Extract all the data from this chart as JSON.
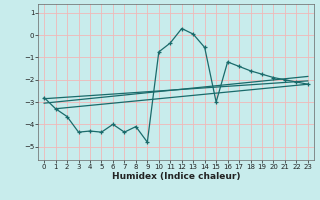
{
  "title": "",
  "xlabel": "Humidex (Indice chaleur)",
  "bg_color": "#c8ecec",
  "grid_color": "#f0b8b8",
  "line_color": "#1a6b6b",
  "xlim": [
    -0.5,
    23.5
  ],
  "ylim": [
    -5.6,
    1.4
  ],
  "yticks": [
    1,
    0,
    -1,
    -2,
    -3,
    -4,
    -5
  ],
  "xticks": [
    0,
    1,
    2,
    3,
    4,
    5,
    6,
    7,
    8,
    9,
    10,
    11,
    12,
    13,
    14,
    15,
    16,
    17,
    18,
    19,
    20,
    21,
    22,
    23
  ],
  "main_curve_x": [
    0,
    1,
    2,
    3,
    4,
    5,
    6,
    7,
    8,
    9,
    10,
    11,
    12,
    13,
    14,
    15,
    16,
    17,
    18,
    19,
    20,
    21,
    22,
    23
  ],
  "main_curve_y": [
    -2.8,
    -3.3,
    -3.65,
    -4.35,
    -4.3,
    -4.35,
    -4.0,
    -4.35,
    -4.1,
    -4.8,
    -0.75,
    -0.35,
    0.3,
    0.05,
    -0.55,
    -3.0,
    -1.2,
    -1.4,
    -1.6,
    -1.75,
    -1.9,
    -2.0,
    -2.1,
    -2.2
  ],
  "line1_x": [
    0,
    23
  ],
  "line1_y": [
    -2.85,
    -2.05
  ],
  "line2_x": [
    0,
    23
  ],
  "line2_y": [
    -3.05,
    -1.85
  ],
  "line3_x": [
    1,
    23
  ],
  "line3_y": [
    -3.3,
    -2.2
  ],
  "tick_fontsize": 5.0,
  "xlabel_fontsize": 6.5
}
